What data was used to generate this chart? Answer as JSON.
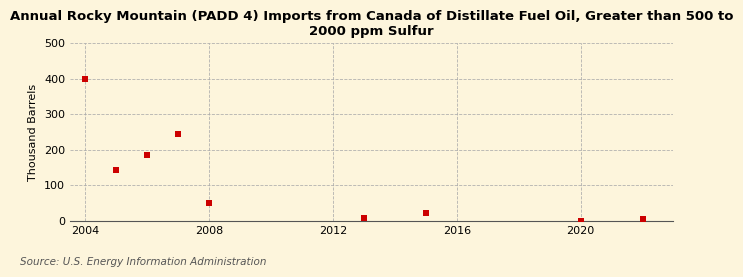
{
  "title": "Annual Rocky Mountain (PADD 4) Imports from Canada of Distillate Fuel Oil, Greater than 500 to\n2000 ppm Sulfur",
  "ylabel": "Thousand Barrels",
  "source": "Source: U.S. Energy Information Administration",
  "years": [
    2004,
    2005,
    2006,
    2007,
    2008,
    2013,
    2015,
    2020,
    2022
  ],
  "values": [
    400,
    143,
    185,
    243,
    50,
    8,
    22,
    -2,
    5
  ],
  "xlim": [
    2003.5,
    2023
  ],
  "ylim": [
    0,
    500
  ],
  "yticks": [
    0,
    100,
    200,
    300,
    400,
    500
  ],
  "xticks": [
    2004,
    2008,
    2012,
    2016,
    2020
  ],
  "marker_color": "#cc0000",
  "marker": "s",
  "marker_size": 5,
  "bg_color": "#fdf5dc",
  "grid_color": "#aaaaaa",
  "title_fontsize": 9.5,
  "label_fontsize": 8,
  "tick_fontsize": 8,
  "source_fontsize": 7.5
}
